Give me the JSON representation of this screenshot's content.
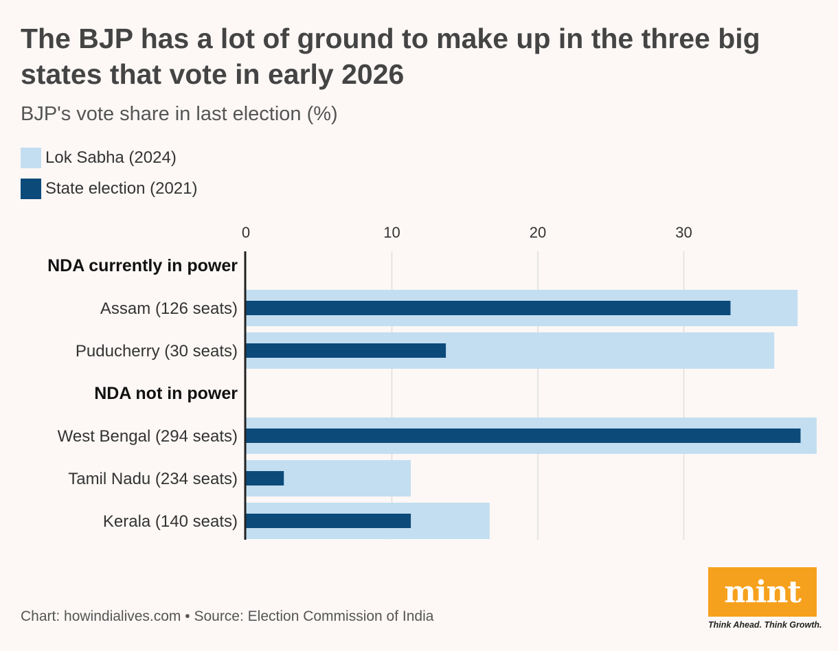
{
  "title": "The BJP has a lot of ground to make up in the three big states that vote in early 2026",
  "subtitle": "BJP's vote share in last election (%)",
  "footer": "Chart: howindialives.com • Source: Election Commission of India",
  "logo": {
    "text": "mint",
    "tagline": "Think Ahead. Think Growth.",
    "color": "#f6a11d"
  },
  "colors": {
    "lok_sabha": "#c3def0",
    "state": "#0c4a7a",
    "axis": "#222222",
    "grid": "#dddddd"
  },
  "chart_data": {
    "type": "bar",
    "orientation": "horizontal",
    "xlim": [
      0,
      39
    ],
    "xticks": [
      0,
      10,
      20,
      30
    ],
    "grid": true,
    "legend_position": "top-left",
    "groups": [
      {
        "label": "NDA currently in power",
        "categories": [
          "Assam (126 seats)",
          "Puducherry (30 seats)"
        ]
      },
      {
        "label": "NDA not in power",
        "categories": [
          "West Bengal (294 seats)",
          "Tamil Nadu (234 seats)",
          "Kerala (140 seats)"
        ]
      }
    ],
    "categories": [
      "Assam (126 seats)",
      "Puducherry (30 seats)",
      "West Bengal (294 seats)",
      "Tamil Nadu (234 seats)",
      "Kerala (140 seats)"
    ],
    "series": [
      {
        "name": "Lok Sabha (2024)",
        "values": [
          37.8,
          36.2,
          39.1,
          11.3,
          16.7
        ]
      },
      {
        "name": "State election (2021)",
        "values": [
          33.2,
          13.7,
          38.0,
          2.6,
          11.3
        ]
      }
    ]
  }
}
